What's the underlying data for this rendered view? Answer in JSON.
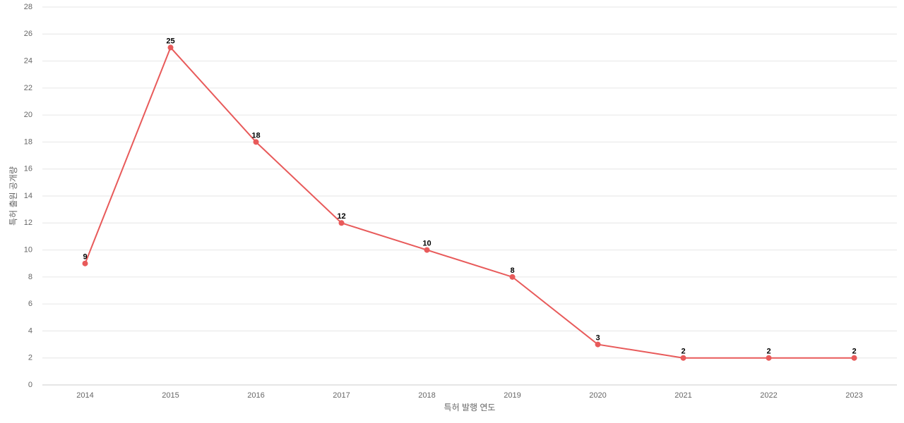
{
  "chart_data": {
    "type": "line",
    "x_label": "특허 발행 연도",
    "y_label": "특허 출원 공개량",
    "categories": [
      "2014",
      "2015",
      "2016",
      "2017",
      "2018",
      "2019",
      "2020",
      "2021",
      "2022",
      "2023"
    ],
    "series": [
      {
        "name": "특허 출원 공개량",
        "color": "#e85a5a",
        "values": [
          9,
          25,
          18,
          12,
          10,
          8,
          3,
          2,
          2,
          2
        ]
      }
    ],
    "ylim": [
      0,
      28
    ],
    "yticks": [
      0,
      2,
      4,
      6,
      8,
      10,
      12,
      14,
      16,
      18,
      20,
      22,
      24,
      26,
      28
    ],
    "grid": true
  }
}
